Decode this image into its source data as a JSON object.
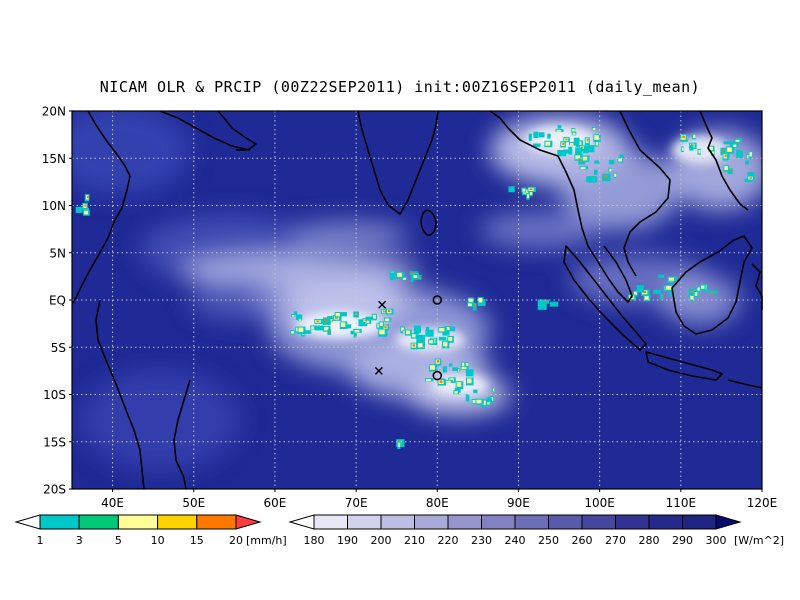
{
  "title": "NICAM OLR & PRCIP (00Z22SEP2011) init:00Z16SEP2011 (daily_mean)",
  "map": {
    "lon_range": [
      35,
      120
    ],
    "lat_range": [
      -20,
      20
    ],
    "lat_labels": [
      "20N",
      "15N",
      "10N",
      "5N",
      "EQ",
      "5S",
      "10S",
      "15S",
      "20S"
    ],
    "lon_labels": [
      "40E",
      "50E",
      "60E",
      "70E",
      "80E",
      "90E",
      "100E",
      "110E",
      "120E"
    ],
    "grid": true,
    "markers": [
      {
        "type": "cross",
        "lon": 73.2,
        "lat": -0.5
      },
      {
        "type": "cross",
        "lon": 72.8,
        "lat": -7.5
      },
      {
        "type": "circle",
        "lon": 80.0,
        "lat": 0.0
      },
      {
        "type": "circle",
        "lon": 80.0,
        "lat": -8.0
      }
    ],
    "colors": {
      "ocean_base": "#1f2a96",
      "land_base": "#26318f",
      "coastline": "#000000"
    }
  },
  "precip_legend": {
    "labels": [
      "1",
      "3",
      "5",
      "10",
      "15",
      "20"
    ],
    "unit": "[mm/h]",
    "colors": [
      "#ffffff",
      "#00c8c8",
      "#00c878",
      "#ffff96",
      "#ffd200",
      "#ff7800",
      "#ff3c3c"
    ]
  },
  "olr_legend": {
    "labels": [
      "180",
      "190",
      "200",
      "210",
      "220",
      "230",
      "240",
      "250",
      "260",
      "270",
      "280",
      "290",
      "300"
    ],
    "unit": "[W/m^2]",
    "colors": [
      "#ffffff",
      "#e6e6f5",
      "#d2d2ec",
      "#bebee2",
      "#aaaad8",
      "#9696cd",
      "#8282c2",
      "#6e6eb6",
      "#5a5aaa",
      "#46469e",
      "#323292",
      "#232a8a",
      "#1e2482",
      "#0a0a6e"
    ]
  }
}
